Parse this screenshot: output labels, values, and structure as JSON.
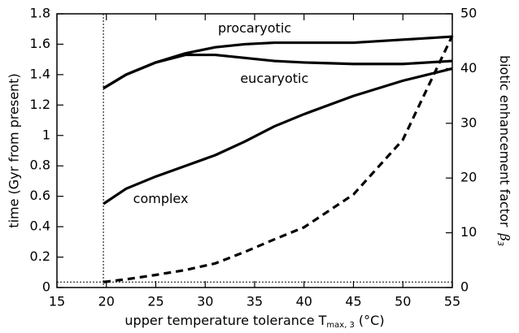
{
  "chart_data": {
    "type": "line",
    "xlabel": {
      "text": "upper temperature tolerance T",
      "sub": "max, 3",
      "tail": "(°C)"
    },
    "ylabel": "time (Gyr from present)",
    "y2label": {
      "text": "biotic enhancement factor",
      "symbol": "β",
      "sub": "3"
    },
    "x": [
      19.7,
      22,
      25,
      28,
      31,
      34,
      37,
      40,
      45,
      50,
      55
    ],
    "series": [
      {
        "name": "procaryotic",
        "color": "#000000",
        "values": [
          1.31,
          1.4,
          1.48,
          1.54,
          1.58,
          1.6,
          1.61,
          1.61,
          1.61,
          1.63,
          1.65
        ]
      },
      {
        "name": "eucaryotic",
        "color": "#000000",
        "values": [
          1.31,
          1.4,
          1.48,
          1.53,
          1.53,
          1.51,
          1.49,
          1.48,
          1.47,
          1.47,
          1.49
        ]
      },
      {
        "name": "complex",
        "color": "#000000",
        "values": [
          0.55,
          0.65,
          0.73,
          0.8,
          0.87,
          0.96,
          1.06,
          1.14,
          1.26,
          1.36,
          1.44
        ]
      },
      {
        "color": "#000000",
        "dashed": true,
        "axis": "y2",
        "values": [
          1,
          1.5,
          2.3,
          3.2,
          4.4,
          6.5,
          8.8,
          11,
          17,
          27,
          46
        ]
      }
    ],
    "xlim": [
      15,
      55
    ],
    "xticks": [
      15,
      20,
      25,
      30,
      35,
      40,
      45,
      50,
      55
    ],
    "ylim": [
      0,
      1.8
    ],
    "yticks": [
      0,
      0.2,
      0.4,
      0.6,
      0.8,
      1,
      1.2,
      1.4,
      1.6,
      1.8
    ],
    "y2lim": [
      0,
      50
    ],
    "y2ticks": [
      0,
      10,
      20,
      30,
      40,
      50
    ],
    "vline_x": 19.7,
    "hline_y2": 1
  }
}
